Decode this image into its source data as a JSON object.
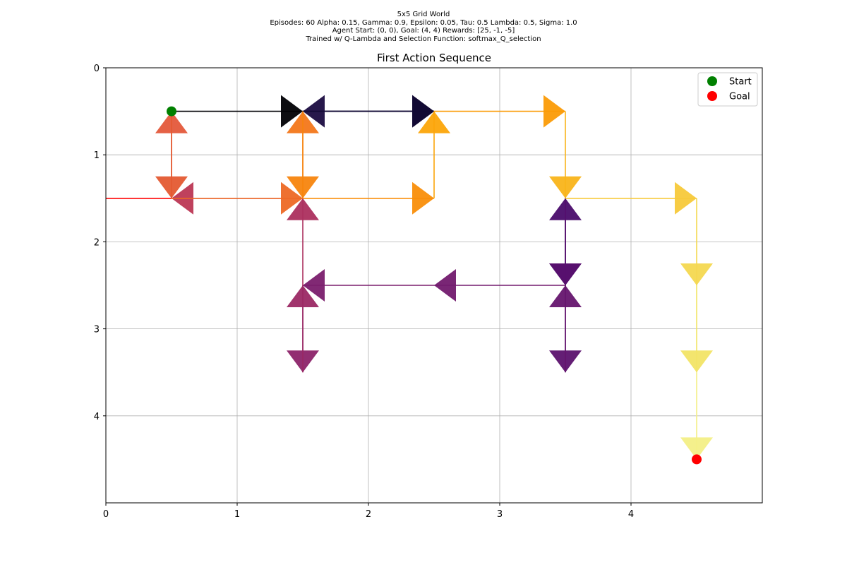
{
  "suptitle": {
    "line1": "5x5 Grid World",
    "line2": "Episodes: 60 Alpha: 0.15, Gamma: 0.9, Epsilon: 0.05, Tau: 0.5 Lambda: 0.5, Sigma: 1.0",
    "line3": "Agent Start: (0, 0), Goal: (4, 4) Rewards: [25, -1, -5]",
    "line4": "Trained w/ Q-Lambda and Selection Function: softmax_Q_selection"
  },
  "chart_data": {
    "type": "line",
    "title": "First Action Sequence",
    "xlim": [
      0,
      5
    ],
    "ylim": [
      5,
      0
    ],
    "y_inverted": true,
    "grid": true,
    "x_ticks": [
      0,
      1,
      2,
      3,
      4
    ],
    "y_ticks": [
      0,
      1,
      2,
      3,
      4
    ],
    "legend": {
      "placement": "top-right",
      "entries": [
        {
          "label": "Start",
          "color": "#008000"
        },
        {
          "label": "Goal",
          "color": "#ff0000"
        }
      ]
    },
    "start": {
      "x": 0.5,
      "y": 0.5
    },
    "goal": {
      "x": 4.5,
      "y": 4.5
    },
    "colormap": "inferno",
    "steps": [
      {
        "from": [
          0.5,
          0.5
        ],
        "to": [
          1.5,
          0.5
        ],
        "color": "#000004"
      },
      {
        "from": [
          1.5,
          0.5
        ],
        "to": [
          2.5,
          0.5
        ],
        "color": "#0d0829"
      },
      {
        "from": [
          2.5,
          0.5
        ],
        "to": [
          1.5,
          0.5
        ],
        "color": "#1b0c41"
      },
      {
        "from": [
          1.5,
          0.5
        ],
        "to": [
          2.5,
          0.5
        ],
        "color": "#120a35"
      },
      {
        "from": [
          2.5,
          0.5
        ],
        "to": [
          3.5,
          0.5
        ],
        "color": "#fb9b06"
      },
      {
        "from": [
          3.5,
          0.5
        ],
        "to": [
          3.5,
          1.5
        ],
        "color": "#f9b41a"
      },
      {
        "from": [
          3.5,
          1.5
        ],
        "to": [
          3.5,
          2.5
        ],
        "color": "#440f76"
      },
      {
        "from": [
          3.5,
          2.5
        ],
        "to": [
          3.5,
          1.5
        ],
        "color": "#4a0c6b"
      },
      {
        "from": [
          3.5,
          1.5
        ],
        "to": [
          3.5,
          2.5
        ],
        "color": "#57106e"
      },
      {
        "from": [
          3.5,
          2.5
        ],
        "to": [
          3.5,
          3.5
        ],
        "color": "#5c126e"
      },
      {
        "from": [
          3.5,
          3.5
        ],
        "to": [
          3.5,
          2.5
        ],
        "color": "#65156e"
      },
      {
        "from": [
          3.5,
          2.5
        ],
        "to": [
          2.5,
          2.5
        ],
        "color": "#721a6e"
      },
      {
        "from": [
          2.5,
          2.5
        ],
        "to": [
          1.5,
          2.5
        ],
        "color": "#7a1d6d"
      },
      {
        "from": [
          1.5,
          2.5
        ],
        "to": [
          1.5,
          3.5
        ],
        "color": "#8c2369"
      },
      {
        "from": [
          1.5,
          3.5
        ],
        "to": [
          1.5,
          2.5
        ],
        "color": "#9b2964"
      },
      {
        "from": [
          1.5,
          2.5
        ],
        "to": [
          1.5,
          1.5
        ],
        "color": "#ac2f5e"
      },
      {
        "from": [
          1.5,
          1.5
        ],
        "to": [
          0.5,
          1.5
        ],
        "color": "#bc3754"
      },
      {
        "from": [
          0.5,
          1.5
        ],
        "to": [
          -0.5,
          1.5
        ],
        "color": "#ff0000"
      },
      {
        "from": [
          0.5,
          1.5
        ],
        "to": [
          0.5,
          0.5
        ],
        "color": "#e4593b"
      },
      {
        "from": [
          0.5,
          0.5
        ],
        "to": [
          0.5,
          1.5
        ],
        "color": "#e45a31"
      },
      {
        "from": [
          0.5,
          1.5
        ],
        "to": [
          1.5,
          1.5
        ],
        "color": "#ed6925"
      },
      {
        "from": [
          1.5,
          1.5
        ],
        "to": [
          1.5,
          0.5
        ],
        "color": "#f3771a"
      },
      {
        "from": [
          1.5,
          0.5
        ],
        "to": [
          1.5,
          1.5
        ],
        "color": "#f7850e"
      },
      {
        "from": [
          1.5,
          1.5
        ],
        "to": [
          2.5,
          1.5
        ],
        "color": "#f98e09"
      },
      {
        "from": [
          2.5,
          1.5
        ],
        "to": [
          2.5,
          0.5
        ],
        "color": "#fca50a"
      },
      {
        "from": [
          3.5,
          1.5
        ],
        "to": [
          4.5,
          1.5
        ],
        "color": "#f7c93a"
      },
      {
        "from": [
          4.5,
          1.5
        ],
        "to": [
          4.5,
          2.5
        ],
        "color": "#f4d850"
      },
      {
        "from": [
          4.5,
          2.5
        ],
        "to": [
          4.5,
          3.5
        ],
        "color": "#f2e466"
      },
      {
        "from": [
          4.5,
          3.5
        ],
        "to": [
          4.5,
          4.5
        ],
        "color": "#f3ef86"
      }
    ]
  }
}
